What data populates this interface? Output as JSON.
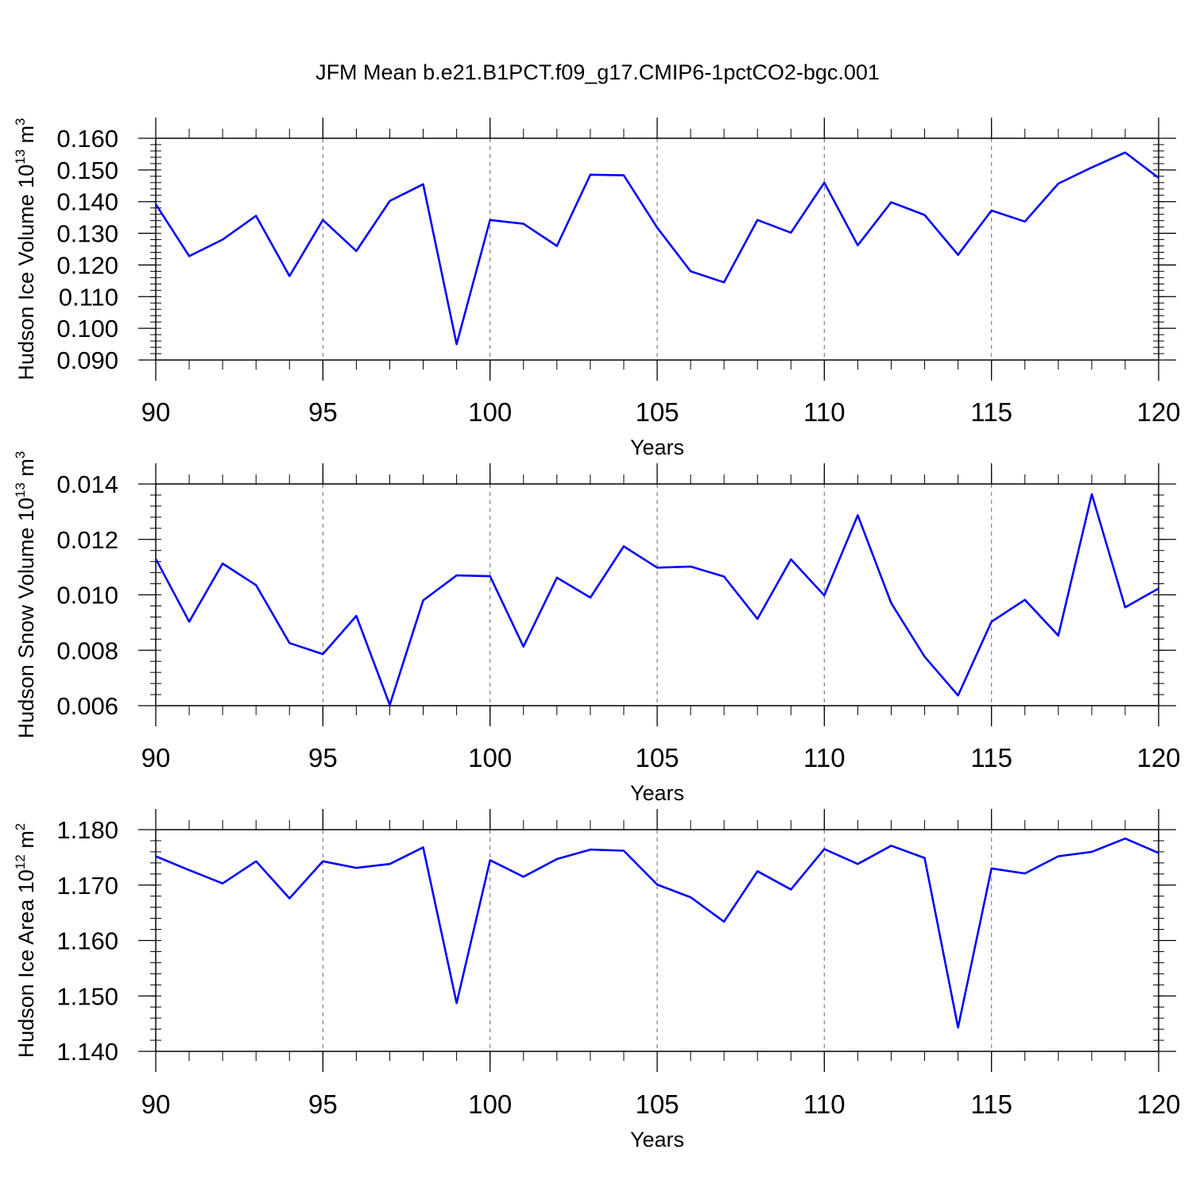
{
  "title": "JFM Mean b.e21.B1PCT.f09_g17.CMIP6-1pctCO2-bgc.001",
  "colors": {
    "series": "#0000ff",
    "axis": "#000000",
    "grid": "#808080"
  },
  "chart_data": [
    {
      "type": "line",
      "title": "JFM Mean b.e21.B1PCT.f09_g17.CMIP6-1pctCO2-bgc.001",
      "ylabel": "Hudson Ice Volume",
      "ylabel_unit_base": "10",
      "ylabel_unit_exp": "13",
      "ylabel_unit": "m",
      "ylabel_unit_pow": "3",
      "xlabel": "Years",
      "xlim": [
        90,
        120
      ],
      "ylim": [
        0.09,
        0.16
      ],
      "xticks": [
        "90",
        "95",
        "100",
        "105",
        "110",
        "115",
        "120"
      ],
      "yticks": [
        "0.160",
        "0.150",
        "0.140",
        "0.130",
        "0.120",
        "0.110",
        "0.100",
        "0.090"
      ],
      "ytick_values": [
        0.16,
        0.15,
        0.14,
        0.13,
        0.12,
        0.11,
        0.1,
        0.09
      ],
      "grid": "dashed vertical lines at major x ticks",
      "x": [
        90,
        91,
        92,
        93,
        94,
        95,
        96,
        97,
        98,
        99,
        100,
        101,
        102,
        103,
        104,
        105,
        106,
        107,
        108,
        109,
        110,
        111,
        112,
        113,
        114,
        115,
        116,
        117,
        118,
        119,
        120
      ],
      "values": [
        0.1392,
        0.1228,
        0.128,
        0.1355,
        0.1165,
        0.1342,
        0.1244,
        0.1402,
        0.1455,
        0.095,
        0.1342,
        0.133,
        0.126,
        0.1485,
        0.1483,
        0.1318,
        0.118,
        0.1145,
        0.1342,
        0.1302,
        0.146,
        0.1262,
        0.1398,
        0.1358,
        0.1232,
        0.1372,
        0.1337,
        0.1457,
        0.1508,
        0.1555,
        0.1475
      ]
    },
    {
      "type": "line",
      "ylabel": "Hudson Snow Volume",
      "ylabel_unit_base": "10",
      "ylabel_unit_exp": "13",
      "ylabel_unit": "m",
      "ylabel_unit_pow": "3",
      "xlabel": "Years",
      "xlim": [
        90,
        120
      ],
      "ylim": [
        0.006,
        0.014
      ],
      "xticks": [
        "90",
        "95",
        "100",
        "105",
        "110",
        "115",
        "120"
      ],
      "yticks": [
        "0.014",
        "0.012",
        "0.010",
        "0.008",
        "0.006"
      ],
      "ytick_values": [
        0.014,
        0.012,
        0.01,
        0.008,
        0.006
      ],
      "grid": "dashed vertical lines at major x ticks",
      "x": [
        90,
        91,
        92,
        93,
        94,
        95,
        96,
        97,
        98,
        99,
        100,
        101,
        102,
        103,
        104,
        105,
        106,
        107,
        108,
        109,
        110,
        111,
        112,
        113,
        114,
        115,
        116,
        117,
        118,
        119,
        120
      ],
      "values": [
        0.0113,
        0.00903,
        0.01113,
        0.01035,
        0.00826,
        0.00786,
        0.00924,
        0.00603,
        0.0098,
        0.0107,
        0.01067,
        0.00813,
        0.01062,
        0.0099,
        0.01175,
        0.01098,
        0.01102,
        0.01066,
        0.00913,
        0.01128,
        0.00998,
        0.01287,
        0.0097,
        0.00777,
        0.00637,
        0.00903,
        0.00982,
        0.00853,
        0.01363,
        0.00955,
        0.01023
      ]
    },
    {
      "type": "line",
      "ylabel": "Hudson Ice Area",
      "ylabel_unit_base": "10",
      "ylabel_unit_exp": "12",
      "ylabel_unit": "m",
      "ylabel_unit_pow": "2",
      "xlabel": "Years",
      "xlim": [
        90,
        120
      ],
      "ylim": [
        1.14,
        1.18
      ],
      "xticks": [
        "90",
        "95",
        "100",
        "105",
        "110",
        "115",
        "120"
      ],
      "yticks": [
        "1.180",
        "1.170",
        "1.160",
        "1.150",
        "1.140"
      ],
      "ytick_values": [
        1.18,
        1.17,
        1.16,
        1.15,
        1.14
      ],
      "grid": "dashed vertical lines at major x ticks",
      "x": [
        90,
        91,
        92,
        93,
        94,
        95,
        96,
        97,
        98,
        99,
        100,
        101,
        102,
        103,
        104,
        105,
        106,
        107,
        108,
        109,
        110,
        111,
        112,
        113,
        114,
        115,
        116,
        117,
        118,
        119,
        120
      ],
      "values": [
        1.1752,
        1.1727,
        1.1703,
        1.1743,
        1.1676,
        1.1743,
        1.1731,
        1.1738,
        1.1768,
        1.1487,
        1.1745,
        1.1715,
        1.1747,
        1.1764,
        1.1762,
        1.1701,
        1.1678,
        1.1634,
        1.1725,
        1.1692,
        1.1765,
        1.1738,
        1.1771,
        1.1749,
        1.1443,
        1.173,
        1.1721,
        1.1752,
        1.176,
        1.1784,
        1.1758
      ]
    }
  ]
}
